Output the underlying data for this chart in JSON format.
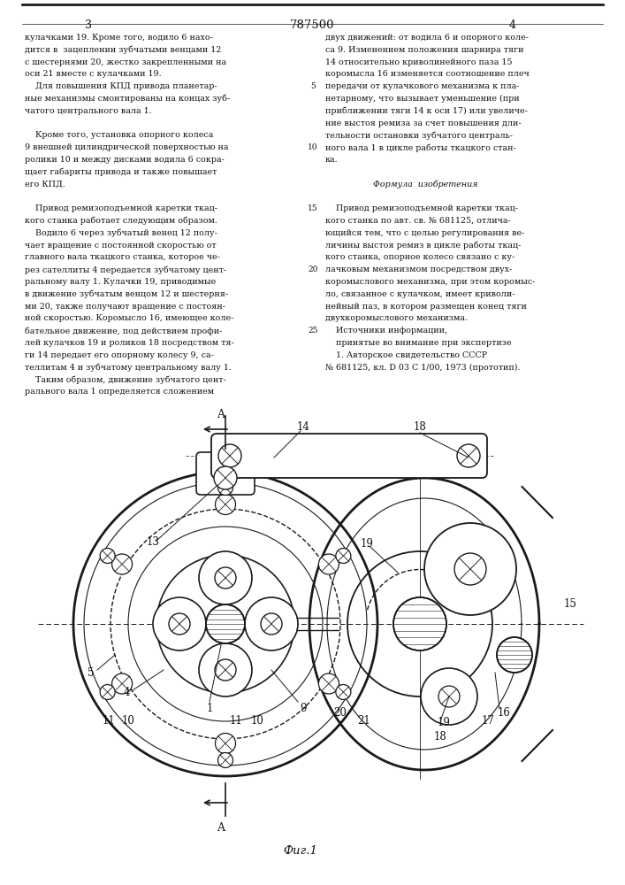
{
  "page_number_left": "3",
  "page_number_center": "787500",
  "page_number_right": "4",
  "fig_caption": "Фиг.1",
  "bg_color": "#ffffff",
  "line_color": "#1a1a1a",
  "text_color": "#111111",
  "left_col_lines": [
    "кулачками 19. Кроме того, водило 6 нахо-",
    "дится в  зацеплении зубчатыми венцами 12",
    "с шестернями 20, жестко закрепленными на",
    "оси 21 вместе с кулачками 19.",
    "    Для повышения КПД привода планетар-",
    "ные механизмы смонтированы на концах зуб-",
    "чатого центрального вала 1.",
    "",
    "    Кроме того, установка опорного колеса",
    "9 внешней цилиндрической поверхностью на",
    "ролики 10 и между дисками водила 6 сокра-",
    "щает габариты привода и также повышает",
    "его КПД.",
    "",
    "    Привод ремизоподъемной каретки ткац-",
    "кого станка работает следующим образом.",
    "    Водило 6 через зубчатый венец 12 полу-",
    "чает вращение с постоянной скоростью от",
    "главного вала ткацкого станка, которое че-",
    "рез сателлиты 4 передается зубчатому цент-",
    "ральному валу 1. Кулачки 19, приводимые",
    "в движение зубчатым венцом 12 и шестерня-",
    "ми 20, также получают вращение с постоян-",
    "ной скоростью. Коромысло 16, имеющее коле-",
    "бательное движение, под действием профи-",
    "лей кулачков 19 и роликов 18 посредством тя-",
    "ги 14 передает его опорному колесу 9, са-",
    "теллитам 4 и зубчатому центральному валу 1.",
    "    Таким образом, движение зубчатого цент-",
    "рального вала 1 определяется сложением"
  ],
  "right_col_lines": [
    "двух движений: от водила 6 и опорного коле-",
    "са 9. Изменением положения шарнира тяги",
    "14 относительно криволинейного паза 15",
    "коромысла 16 изменяется соотношение плеч",
    "передачи от кулачкового механизма к пла-",
    "нетарному, что вызывает уменьшение (при",
    "приближении тяги 14 к оси 17) или увеличе-",
    "ние выстоя ремиза за счет повышения дли-",
    "тельности остановки зубчатого централь-",
    "ного вала 1 в цикле работы ткацкого стан-",
    "ка.",
    "",
    "                  Формула  изобретения",
    "",
    "    Привод ремизоподъемной каретки ткац-",
    "кого станка по авт. св. № 681125, отлича-",
    "ющийся тем, что с целью регулирования ве-",
    "личины выстоя ремиз в цикле работы ткац-",
    "кого станка, опорное колесо связано с ку-",
    "лачковым механизмом посредством двух-",
    "коромыслового механизма, при этом коромыс-",
    "ло, связанное с кулачком, имеет криволи-",
    "нейный паз, в котором размещен конец тяги",
    "двухкоромыслового механизма.",
    "    Источники информации,",
    "    принятые во внимание при экспертизе",
    "    1. Авторское свидетельство СССР",
    "№ 681125, кл. D 03 С 1/00, 1973 (прототип)."
  ]
}
